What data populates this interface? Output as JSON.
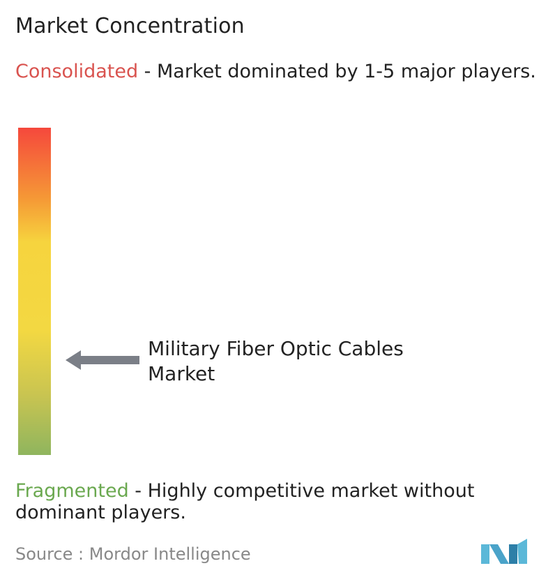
{
  "title": "Market Concentration",
  "consolidated": {
    "keyword": "Consolidated",
    "description": " - Market dominated by 1-5 major players.",
    "color": "#d9534f"
  },
  "fragmented": {
    "keyword": "Fragmented",
    "description": " - Highly competitive market without dominant players.",
    "color": "#6aa84f"
  },
  "chart_data": {
    "type": "gradient-scale",
    "scale_top_label": "Consolidated",
    "scale_bottom_label": "Fragmented",
    "gradient_colors": [
      "#f5483c",
      "#f59a36",
      "#f6d43e",
      "#f3d842",
      "#c8c451",
      "#8fb55e"
    ],
    "marker": {
      "label": "Military Fiber Optic Cables Market",
      "position_fraction_from_top": 0.71
    }
  },
  "source": {
    "text": "Source :  Mordor Intelligence"
  },
  "logo": {
    "icon": "mordor-intelligence-logo",
    "colors": [
      "#5bb8d8",
      "#2d7fa8"
    ]
  }
}
